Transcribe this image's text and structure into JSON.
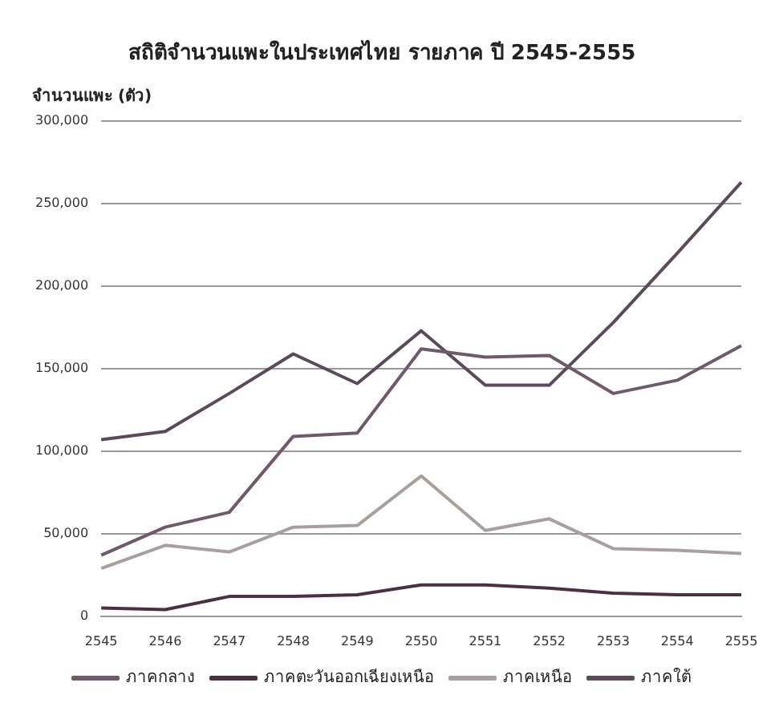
{
  "chart_data": {
    "type": "line",
    "title": "สถิติจำนวนแพะในประเทศไทย รายภาค ปี 2545-2555",
    "ylabel": "จำนวนแพะ (ตัว)",
    "categories": [
      "2545",
      "2546",
      "2547",
      "2548",
      "2549",
      "2550",
      "2551",
      "2552",
      "2553",
      "2554",
      "2555"
    ],
    "series": [
      {
        "name": "ภาคกลาง",
        "color": "#6e5a6a",
        "values": [
          37000,
          54000,
          63000,
          109000,
          111000,
          162000,
          157000,
          158000,
          135000,
          143000,
          164000
        ]
      },
      {
        "name": "ภาคตะวันออกเฉียงเหนือ",
        "color": "#4a3040",
        "values": [
          5000,
          4000,
          12000,
          12000,
          13000,
          19000,
          19000,
          17000,
          14000,
          13000,
          13000
        ]
      },
      {
        "name": "ภาคเหนือ",
        "color": "#a8a0a0",
        "values": [
          29000,
          43000,
          39000,
          54000,
          55000,
          85000,
          52000,
          59000,
          41000,
          40000,
          38000
        ]
      },
      {
        "name": "ภาคใต้",
        "color": "#5a4a5a",
        "values": [
          107000,
          112000,
          135000,
          159000,
          141000,
          173000,
          140000,
          140000,
          178000,
          220000,
          263000
        ]
      }
    ],
    "ylim": [
      0,
      300000
    ],
    "yticks": [
      {
        "value": 0,
        "label": "0"
      },
      {
        "value": 50000,
        "label": "50,000"
      },
      {
        "value": 100000,
        "label": "100,000"
      },
      {
        "value": 150000,
        "label": "150,000"
      },
      {
        "value": 200000,
        "label": "200,000"
      },
      {
        "value": 250000,
        "label": "250,000"
      },
      {
        "value": 300000,
        "label": "300,000"
      }
    ],
    "grid": "y",
    "legend": "bottom",
    "marker": "none",
    "line_style": "solid"
  }
}
